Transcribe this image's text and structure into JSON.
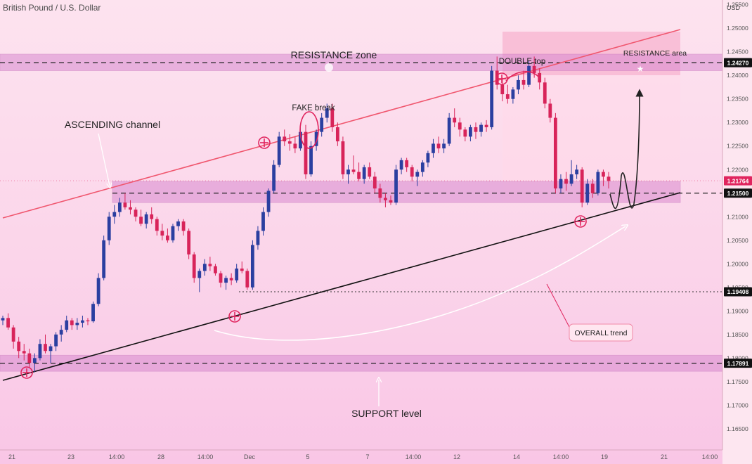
{
  "header": {
    "symbol_title": "British Pound / U.S. Dollar",
    "currency": "USD"
  },
  "chart_data": {
    "type": "candlestick",
    "title": "British Pound / U.S. Dollar",
    "y_axis": {
      "unit": "USD",
      "range": [
        1.1605,
        1.256
      ],
      "ticks": [
        "1.25500",
        "1.25000",
        "1.24500",
        "1.24000",
        "1.23500",
        "1.23000",
        "1.22500",
        "1.22000",
        "1.21500",
        "1.21000",
        "1.20500",
        "1.20000",
        "1.19500",
        "1.19000",
        "1.18500",
        "1.18000",
        "1.17500",
        "1.17000",
        "1.16500"
      ]
    },
    "x_axis": {
      "ticks": [
        "21",
        "23",
        "14:00",
        "28",
        "14:00",
        "Dec",
        "5",
        "7",
        "14:00",
        "12",
        "14",
        "14:00",
        "19",
        "21",
        "14:00"
      ]
    },
    "price_labels": [
      {
        "value": 1.2427,
        "text": "1.24270",
        "color": "#111111"
      },
      {
        "value": 1.21764,
        "text": "1.21764",
        "color": "#e0245e"
      },
      {
        "value": 1.215,
        "text": "1.21500",
        "color": "#111111"
      },
      {
        "value": 1.19408,
        "text": "1.19408",
        "color": "#111111"
      },
      {
        "value": 1.17891,
        "text": "1.17891",
        "color": "#111111"
      }
    ],
    "levels": [
      {
        "name": "resistance",
        "value": 1.2427,
        "zone": [
          1.241,
          1.2445
        ]
      },
      {
        "name": "mid",
        "value": 1.215,
        "zone": [
          1.213,
          1.2175
        ]
      },
      {
        "name": "swing-low",
        "value": 1.19408
      },
      {
        "name": "support",
        "value": 1.17891,
        "zone": [
          1.1772,
          1.1806
        ]
      }
    ],
    "candles": [
      [
        1.188,
        1.189,
        1.187,
        1.1885
      ],
      [
        1.1885,
        1.1895,
        1.186,
        1.1865
      ],
      [
        1.1865,
        1.187,
        1.182,
        1.1835
      ],
      [
        1.1835,
        1.1845,
        1.18,
        1.1815
      ],
      [
        1.1815,
        1.183,
        1.1795,
        1.181
      ],
      [
        1.181,
        1.182,
        1.178,
        1.179
      ],
      [
        1.179,
        1.181,
        1.177,
        1.18
      ],
      [
        1.18,
        1.184,
        1.1795,
        1.183
      ],
      [
        1.183,
        1.185,
        1.181,
        1.1815
      ],
      [
        1.1815,
        1.183,
        1.179,
        1.1825
      ],
      [
        1.1825,
        1.1855,
        1.1815,
        1.185
      ],
      [
        1.185,
        1.187,
        1.1835,
        1.186
      ],
      [
        1.186,
        1.189,
        1.1855,
        1.188
      ],
      [
        1.188,
        1.1885,
        1.186,
        1.187
      ],
      [
        1.187,
        1.1885,
        1.186,
        1.1875
      ],
      [
        1.1875,
        1.189,
        1.1865,
        1.188
      ],
      [
        1.188,
        1.1885,
        1.187,
        1.1878
      ],
      [
        1.1878,
        1.192,
        1.1875,
        1.1915
      ],
      [
        1.1915,
        1.198,
        1.191,
        1.197
      ],
      [
        1.197,
        1.206,
        1.1965,
        1.205
      ],
      [
        1.205,
        1.211,
        1.204,
        1.21
      ],
      [
        1.21,
        1.2125,
        1.2085,
        1.211
      ],
      [
        1.211,
        1.214,
        1.21,
        1.213
      ],
      [
        1.213,
        1.215,
        1.2115,
        1.212
      ],
      [
        1.212,
        1.2135,
        1.2105,
        1.2115
      ],
      [
        1.2115,
        1.212,
        1.209,
        1.21
      ],
      [
        1.21,
        1.2115,
        1.208,
        1.2085
      ],
      [
        1.2085,
        1.211,
        1.2075,
        1.2105
      ],
      [
        1.2105,
        1.212,
        1.2085,
        1.2095
      ],
      [
        1.2095,
        1.21,
        1.206,
        1.207
      ],
      [
        1.207,
        1.2085,
        1.205,
        1.206
      ],
      [
        1.206,
        1.2075,
        1.2045,
        1.205
      ],
      [
        1.205,
        1.2085,
        1.2045,
        1.208
      ],
      [
        1.208,
        1.2095,
        1.207,
        1.209
      ],
      [
        1.209,
        1.2095,
        1.206,
        1.207
      ],
      [
        1.207,
        1.2075,
        1.201,
        1.202
      ],
      [
        1.202,
        1.2025,
        1.196,
        1.197
      ],
      [
        1.197,
        1.199,
        1.194,
        1.1985
      ],
      [
        1.1985,
        1.201,
        1.1975,
        1.2
      ],
      [
        1.2,
        1.2015,
        1.1985,
        1.1995
      ],
      [
        1.1995,
        1.2,
        1.1975,
        1.198
      ],
      [
        1.198,
        1.1985,
        1.195,
        1.196
      ],
      [
        1.196,
        1.1975,
        1.1945,
        1.197
      ],
      [
        1.197,
        1.198,
        1.1955,
        1.1965
      ],
      [
        1.1965,
        1.2,
        1.196,
        1.199
      ],
      [
        1.199,
        1.2005,
        1.198,
        1.1985
      ],
      [
        1.1985,
        1.199,
        1.1945,
        1.195
      ],
      [
        1.195,
        1.205,
        1.1945,
        1.204
      ],
      [
        1.204,
        1.208,
        1.203,
        1.207
      ],
      [
        1.207,
        1.212,
        1.206,
        1.211
      ],
      [
        1.211,
        1.216,
        1.21,
        1.2155
      ],
      [
        1.2155,
        1.222,
        1.215,
        1.221
      ],
      [
        1.221,
        1.228,
        1.2205,
        1.227
      ],
      [
        1.227,
        1.2285,
        1.225,
        1.226
      ],
      [
        1.226,
        1.2275,
        1.224,
        1.2255
      ],
      [
        1.2255,
        1.227,
        1.2235,
        1.2245
      ],
      [
        1.2245,
        1.229,
        1.224,
        1.228
      ],
      [
        1.228,
        1.2295,
        1.218,
        1.219
      ],
      [
        1.219,
        1.226,
        1.2185,
        1.225
      ],
      [
        1.225,
        1.2285,
        1.224,
        1.228
      ],
      [
        1.228,
        1.232,
        1.227,
        1.231
      ],
      [
        1.231,
        1.234,
        1.23,
        1.233
      ],
      [
        1.233,
        1.234,
        1.228,
        1.229
      ],
      [
        1.229,
        1.23,
        1.225,
        1.226
      ],
      [
        1.226,
        1.227,
        1.218,
        1.219
      ],
      [
        1.219,
        1.221,
        1.217,
        1.22
      ],
      [
        1.22,
        1.223,
        1.219,
        1.2195
      ],
      [
        1.2195,
        1.2215,
        1.2175,
        1.218
      ],
      [
        1.218,
        1.221,
        1.217,
        1.2205
      ],
      [
        1.2205,
        1.2215,
        1.218,
        1.2185
      ],
      [
        1.2185,
        1.2195,
        1.215,
        1.216
      ],
      [
        1.216,
        1.217,
        1.213,
        1.214
      ],
      [
        1.214,
        1.215,
        1.212,
        1.2135
      ],
      [
        1.2135,
        1.2145,
        1.2125,
        1.213
      ],
      [
        1.213,
        1.221,
        1.2125,
        1.22
      ],
      [
        1.22,
        1.2225,
        1.219,
        1.222
      ],
      [
        1.222,
        1.2225,
        1.2195,
        1.2205
      ],
      [
        1.2205,
        1.221,
        1.2175,
        1.2185
      ],
      [
        1.2185,
        1.22,
        1.2165,
        1.2195
      ],
      [
        1.2195,
        1.222,
        1.2185,
        1.2215
      ],
      [
        1.2215,
        1.224,
        1.2205,
        1.2235
      ],
      [
        1.2235,
        1.2265,
        1.2225,
        1.2255
      ],
      [
        1.2255,
        1.227,
        1.2235,
        1.2245
      ],
      [
        1.2245,
        1.2265,
        1.2235,
        1.2255
      ],
      [
        1.2255,
        1.232,
        1.225,
        1.231
      ],
      [
        1.231,
        1.233,
        1.229,
        1.23
      ],
      [
        1.23,
        1.231,
        1.227,
        1.2285
      ],
      [
        1.2285,
        1.229,
        1.226,
        1.227
      ],
      [
        1.227,
        1.2295,
        1.226,
        1.229
      ],
      [
        1.229,
        1.23,
        1.2265,
        1.228
      ],
      [
        1.228,
        1.23,
        1.227,
        1.2295
      ],
      [
        1.2295,
        1.2305,
        1.228,
        1.229
      ],
      [
        1.229,
        1.242,
        1.2285,
        1.241
      ],
      [
        1.241,
        1.244,
        1.237,
        1.238
      ],
      [
        1.238,
        1.2395,
        1.2345,
        1.236
      ],
      [
        1.236,
        1.238,
        1.234,
        1.235
      ],
      [
        1.235,
        1.2375,
        1.234,
        1.237
      ],
      [
        1.237,
        1.24,
        1.236,
        1.239
      ],
      [
        1.239,
        1.241,
        1.237,
        1.238
      ],
      [
        1.238,
        1.243,
        1.2375,
        1.242
      ],
      [
        1.242,
        1.244,
        1.2395,
        1.2405
      ],
      [
        1.2405,
        1.2415,
        1.237,
        1.2385
      ],
      [
        1.2385,
        1.2395,
        1.233,
        1.234
      ],
      [
        1.234,
        1.235,
        1.23,
        1.231
      ],
      [
        1.231,
        1.232,
        1.215,
        1.216
      ],
      [
        1.216,
        1.219,
        1.215,
        1.218
      ],
      [
        1.218,
        1.2195,
        1.2155,
        1.217
      ],
      [
        1.217,
        1.222,
        1.2165,
        1.219
      ],
      [
        1.219,
        1.221,
        1.218,
        1.22
      ],
      [
        1.22,
        1.2205,
        1.212,
        1.213
      ],
      [
        1.213,
        1.218,
        1.2125,
        1.217
      ],
      [
        1.217,
        1.218,
        1.214,
        1.215
      ],
      [
        1.215,
        1.22,
        1.2145,
        1.2195
      ],
      [
        1.2195,
        1.22,
        1.2165,
        1.2185
      ],
      [
        1.2185,
        1.2195,
        1.216,
        1.2176
      ]
    ],
    "annotations": {
      "resistance_zone": "RESISTANCE zone",
      "double_top": "DOUBLE top",
      "resistance_area": "RESISTANCE area",
      "fake_break": "FAKE break",
      "ascending_channel": "ASCENDING channel",
      "overall_trend": "OVERALL trend",
      "support_level": "SUPPORT level"
    },
    "colors": {
      "bull": "#2b3fa0",
      "bear": "#d8245a",
      "channel_upper": "#f0566e",
      "channel_lower": "#111111",
      "zone_fill": "#d98ad0",
      "marker": "#e0245e"
    }
  }
}
